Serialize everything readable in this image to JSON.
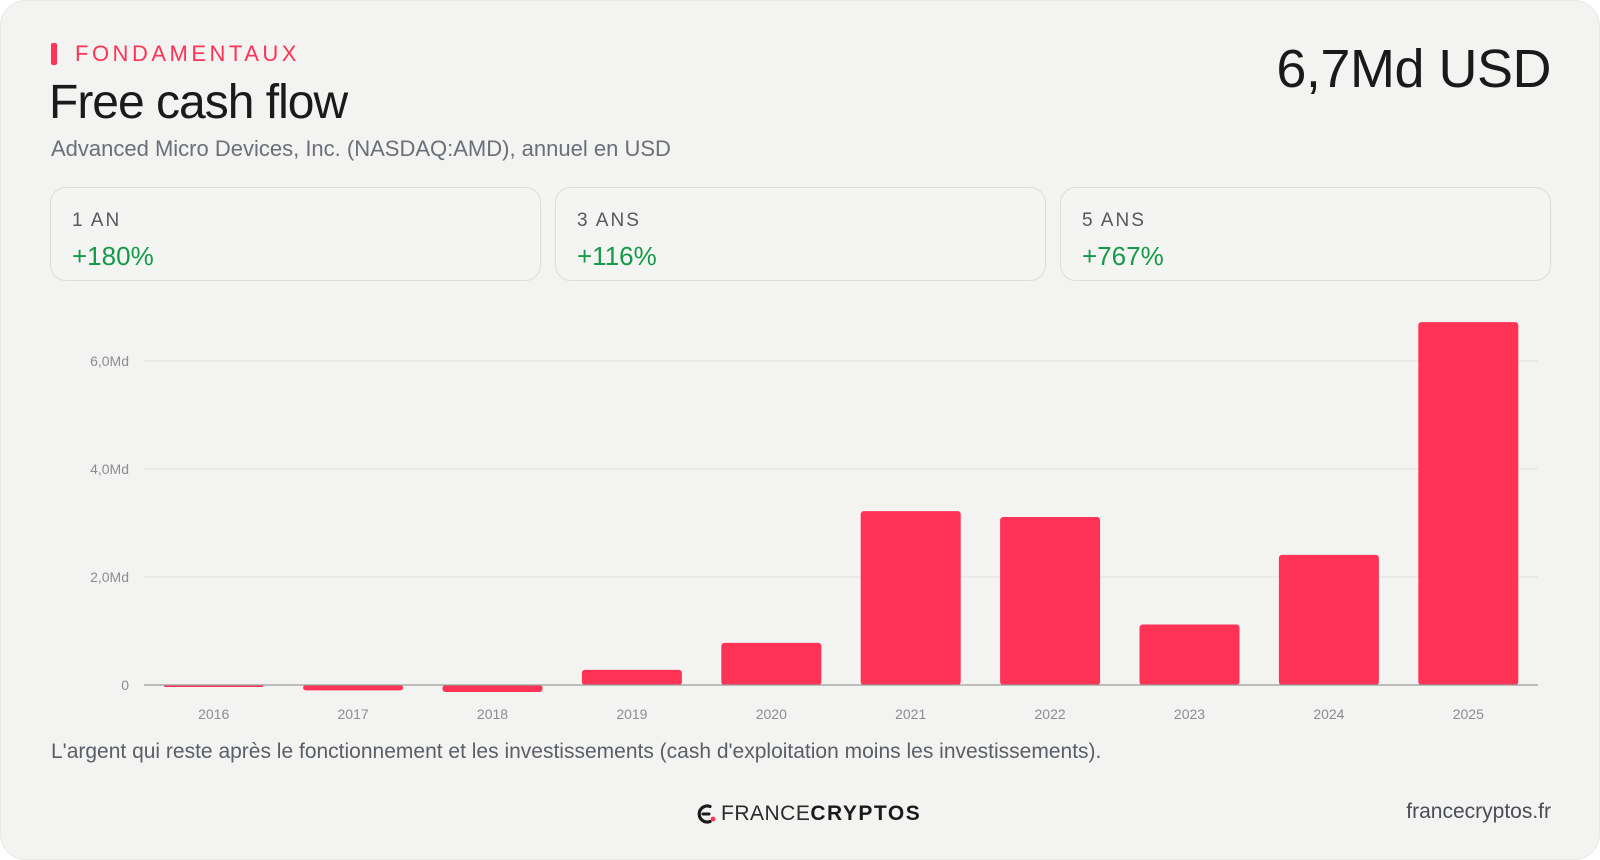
{
  "header": {
    "eyebrow": "FONDAMENTAUX",
    "title": "Free cash flow",
    "subtitle": "Advanced Micro Devices, Inc. (NASDAQ:AMD), annuel en USD",
    "headline_value": "6,7Md USD"
  },
  "stats": [
    {
      "label": "1 AN",
      "value": "+180%"
    },
    {
      "label": "3 ANS",
      "value": "+116%"
    },
    {
      "label": "5 ANS",
      "value": "+767%"
    }
  ],
  "chart_data": {
    "type": "bar",
    "title": "Free cash flow",
    "xlabel": "",
    "ylabel": "",
    "unit": "Md USD",
    "categories": [
      "2016",
      "2017",
      "2018",
      "2019",
      "2020",
      "2021",
      "2022",
      "2023",
      "2024",
      "2025"
    ],
    "values": [
      -0.02,
      -0.1,
      -0.13,
      0.28,
      0.78,
      3.22,
      3.11,
      1.12,
      2.41,
      6.72
    ],
    "yticks": [
      {
        "value": 0,
        "label": "0"
      },
      {
        "value": 2,
        "label": "2,0Md"
      },
      {
        "value": 4,
        "label": "4,0Md"
      },
      {
        "value": 6,
        "label": "6,0Md"
      }
    ],
    "ylim": [
      -0.2,
      7.0
    ],
    "grid": true,
    "legend": "none",
    "bar_color": "#ff3355"
  },
  "colors": {
    "accent": "#ff3355",
    "positive": "#149a48",
    "background": "#f3f3f2"
  },
  "footer": {
    "caption": "L'argent qui reste après le fonctionnement et les investissements (cash d'exploitation moins les investissements).",
    "brand_part1": "FRANCE",
    "brand_part2": "CRYPTOS",
    "brand_icon": "francecryptos-logo-icon",
    "site": "francecryptos.fr"
  }
}
